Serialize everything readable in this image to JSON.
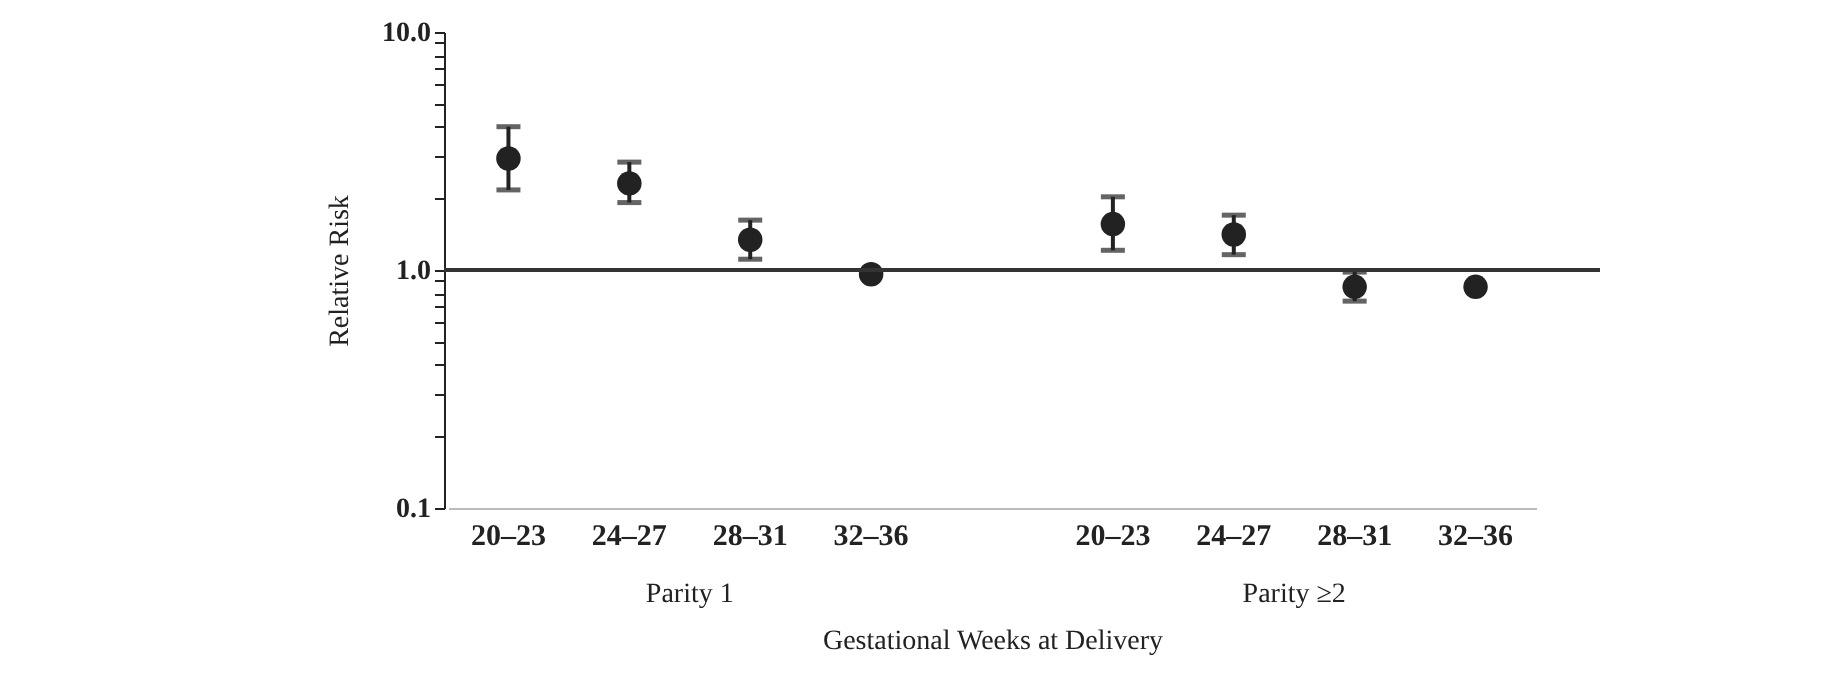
{
  "chart_data": {
    "type": "scatter",
    "categories": [
      "20–23",
      "24–27",
      "28–31",
      "32–36",
      null,
      "20–23",
      "24–27",
      "28–31",
      "32–36"
    ],
    "values": [
      2.94,
      2.31,
      1.34,
      0.96,
      null,
      1.56,
      1.41,
      0.85,
      0.85
    ],
    "errors": [
      [
        2.17,
        4.0
      ],
      [
        1.92,
        2.84
      ],
      [
        1.11,
        1.62
      ],
      null,
      null,
      [
        1.21,
        2.03
      ],
      [
        1.16,
        1.7
      ],
      [
        0.74,
        0.98
      ],
      null
    ],
    "color": "#222222",
    "marker": "circle",
    "log": "y",
    "ylim": [
      0.1,
      10
    ],
    "yticks": [
      {
        "value": 0.1,
        "label": "0.1"
      },
      {
        "value": 0.2,
        "label": null
      },
      {
        "value": 0.3,
        "label": null
      },
      {
        "value": 0.4,
        "label": null
      },
      {
        "value": 0.5,
        "label": null
      },
      {
        "value": 0.6,
        "label": null
      },
      {
        "value": 0.7,
        "label": null
      },
      {
        "value": 0.8,
        "label": null
      },
      {
        "value": 0.9,
        "label": null
      },
      {
        "value": 1,
        "label": "1.0"
      },
      {
        "value": 2,
        "label": null
      },
      {
        "value": 3,
        "label": null
      },
      {
        "value": 4,
        "label": null
      },
      {
        "value": 5,
        "label": null
      },
      {
        "value": 6,
        "label": null
      },
      {
        "value": 7,
        "label": null
      },
      {
        "value": 8,
        "label": null
      },
      {
        "value": 9,
        "label": null
      },
      {
        "value": 10,
        "label": "10.0"
      }
    ],
    "ylabel": "Relative Risk",
    "xlabel": "Gestational Weeks at Delivery",
    "annotations": [
      "Parity 1",
      "Parity ≥2"
    ],
    "ref_lines": [
      {
        "axis": "y",
        "value": 1,
        "color": "#333333"
      }
    ],
    "grid": false
  }
}
